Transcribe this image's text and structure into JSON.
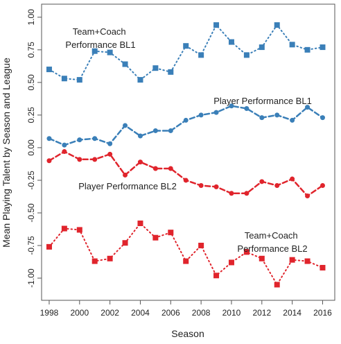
{
  "chart_data": {
    "type": "line",
    "xlabel": "Season",
    "ylabel": "Mean Playing Talent by Season and League",
    "xlim": [
      1997.5,
      2016.8
    ],
    "ylim": [
      -1.17,
      1.1
    ],
    "x_ticks": [
      "1998",
      "2000",
      "2002",
      "2004",
      "2006",
      "2008",
      "2010",
      "2012",
      "2014",
      "2016"
    ],
    "y_ticks": [
      "1.00",
      "0.75",
      "0.50",
      "0.25",
      "0.00",
      "-0.25",
      "-0.50",
      "-0.75",
      "-1.00"
    ],
    "grid": false,
    "x": [
      1998,
      1999,
      2000,
      2001,
      2002,
      2003,
      2004,
      2005,
      2006,
      2007,
      2008,
      2009,
      2010,
      2011,
      2012,
      2013,
      2014,
      2015,
      2016
    ],
    "series": [
      {
        "name": "Team+Coach Performance BL1",
        "label_lines": [
          "Team+Coach",
          "Performance BL1"
        ],
        "color": "#3a7fb8",
        "marker": "square",
        "line": "dotted",
        "values": [
          0.6,
          0.53,
          0.52,
          0.74,
          0.73,
          0.64,
          0.52,
          0.61,
          0.58,
          0.78,
          0.71,
          0.94,
          0.81,
          0.71,
          0.77,
          0.94,
          0.79,
          0.75,
          0.77
        ]
      },
      {
        "name": "Player Performance BL1",
        "label_lines": [
          "Player Performance BL1"
        ],
        "color": "#3a7fb8",
        "marker": "circle",
        "line": "dashed",
        "values": [
          0.07,
          0.02,
          0.06,
          0.07,
          0.03,
          0.17,
          0.09,
          0.13,
          0.13,
          0.21,
          0.25,
          0.27,
          0.32,
          0.3,
          0.23,
          0.25,
          0.21,
          0.31,
          0.23
        ]
      },
      {
        "name": "Player Performance BL2",
        "label_lines": [
          "Player Performance BL2"
        ],
        "color": "#e0242c",
        "marker": "circle",
        "line": "dashed",
        "values": [
          -0.1,
          -0.03,
          -0.09,
          -0.09,
          -0.05,
          -0.21,
          -0.11,
          -0.16,
          -0.16,
          -0.25,
          -0.29,
          -0.3,
          -0.35,
          -0.35,
          -0.26,
          -0.29,
          -0.24,
          -0.37,
          -0.29
        ]
      },
      {
        "name": "Team+Coach Performance BL2",
        "label_lines": [
          "Team+Coach",
          "Performance BL2"
        ],
        "color": "#e0242c",
        "marker": "square",
        "line": "dotted",
        "values": [
          -0.76,
          -0.62,
          -0.63,
          -0.87,
          -0.85,
          -0.73,
          -0.58,
          -0.69,
          -0.65,
          -0.87,
          -0.75,
          -0.98,
          -0.88,
          -0.8,
          -0.85,
          -1.05,
          -0.86,
          -0.87,
          -0.92
        ]
      }
    ]
  }
}
